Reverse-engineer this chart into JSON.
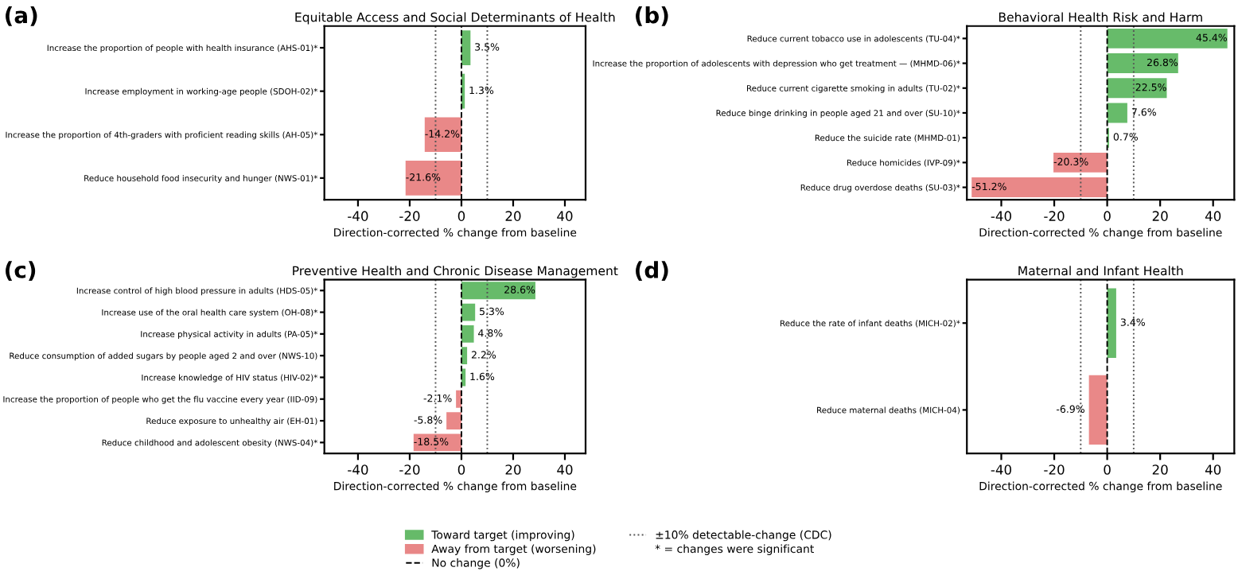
{
  "chart_data": [
    {
      "type": "bar",
      "orientation": "horizontal",
      "title": "Equitable Access and Social Determinants of Health",
      "xlabel": "Direction-corrected % change from baseline",
      "annotations": [
        "(a)",
        "* = changes were significant"
      ],
      "legend": "bottom",
      "categories": [
        "Increase the proportion of people with health insurance (AHS-01)*",
        "Increase employment in working-age people (SDOH-02)*",
        "Increase the proportion of 4th-graders with proficient reading skills (AH-05)*",
        "Reduce household food insecurity and hunger (NWS-01)*"
      ],
      "series": [
        {
          "name": "Toward target (improving)",
          "color": "#4caf50",
          "values": [
            3.5,
            1.3,
            null,
            null
          ],
          "value_labels": [
            "3.5%",
            "1.3%",
            null,
            null
          ]
        },
        {
          "name": "Away from target (worsening)",
          "color": "#e57373",
          "values": [
            null,
            null,
            -14.2,
            -21.6
          ],
          "value_labels": [
            null,
            null,
            "-14.2%",
            "-21.6%"
          ]
        }
      ],
      "ref_lines": [
        {
          "axis": "x",
          "value": 0,
          "label": "No change (0%)",
          "line_style": "dashed",
          "color": "#000000"
        },
        {
          "axis": "x",
          "value": -10,
          "label": "±10% detectable-change (CDC)",
          "line_style": "dotted",
          "color": "#555555"
        },
        {
          "axis": "x",
          "value": 10,
          "line_style": "dotted",
          "color": "#555555"
        }
      ],
      "xlim": [
        -53,
        48
      ],
      "xticks": [
        -40,
        -20,
        0,
        20,
        40
      ]
    },
    {
      "type": "bar",
      "orientation": "horizontal",
      "title": "Behavioral Health Risk and Harm",
      "xlabel": "Direction-corrected % change from baseline",
      "annotations": [
        "(b)"
      ],
      "categories": [
        "Reduce current tobacco use in adolescents (TU-04)*",
        "Increase the proportion of adolescents with depression who get treatment — (MHMD-06)*",
        "Reduce current cigarette smoking in adults (TU-02)*",
        "Reduce binge drinking in people aged 21 and over (SU-10)*",
        "Reduce the suicide rate (MHMD-01)",
        "Reduce homicides (IVP-09)*",
        "Reduce drug overdose deaths (SU-03)*"
      ],
      "series": [
        {
          "color": "#4caf50",
          "values": [
            45.4,
            26.8,
            22.5,
            7.6,
            0.7,
            null,
            null
          ],
          "value_labels": [
            "45.4%",
            "26.8%",
            "22.5%",
            "7.6%",
            "0.7%",
            null,
            null
          ]
        },
        {
          "color": "#e57373",
          "values": [
            null,
            null,
            null,
            null,
            null,
            -20.3,
            -51.2
          ],
          "value_labels": [
            null,
            null,
            null,
            null,
            null,
            "-20.3%",
            "-51.2%"
          ]
        }
      ],
      "ref_lines": [
        {
          "axis": "x",
          "value": 0,
          "line_style": "dashed",
          "color": "#000000"
        },
        {
          "axis": "x",
          "value": -10,
          "line_style": "dotted",
          "color": "#555555"
        },
        {
          "axis": "x",
          "value": 10,
          "line_style": "dotted",
          "color": "#555555"
        }
      ],
      "xlim": [
        -53,
        48
      ],
      "xticks": [
        -40,
        -20,
        0,
        20,
        40
      ]
    },
    {
      "type": "bar",
      "orientation": "horizontal",
      "title": "Preventive Health and Chronic Disease Management",
      "xlabel": "Direction-corrected % change from baseline",
      "annotations": [
        "(c)"
      ],
      "categories": [
        "Increase control of high blood pressure in adults (HDS-05)*",
        "Increase use of the oral health care system (OH-08)*",
        "Increase physical activity in adults (PA-05)*",
        "Reduce consumption of added sugars by people aged 2 and over (NWS-10)",
        "Increase knowledge of HIV status (HIV-02)*",
        "Increase the proportion of people who get the flu vaccine every year (IID-09)",
        "Reduce exposure to unhealthy air (EH-01)",
        "Reduce childhood and adolescent obesity (NWS-04)*"
      ],
      "series": [
        {
          "color": "#4caf50",
          "values": [
            28.6,
            5.3,
            4.8,
            2.2,
            1.6,
            null,
            null,
            null
          ],
          "value_labels": [
            "28.6%",
            "5.3%",
            "4.8%",
            "2.2%",
            "1.6%",
            null,
            null,
            null
          ]
        },
        {
          "color": "#e57373",
          "values": [
            null,
            null,
            null,
            null,
            null,
            -2.1,
            -5.8,
            -18.5
          ],
          "value_labels": [
            null,
            null,
            null,
            null,
            null,
            "-2.1%",
            "-5.8%",
            "-18.5%"
          ]
        }
      ],
      "ref_lines": [
        {
          "axis": "x",
          "value": 0,
          "line_style": "dashed",
          "color": "#000000"
        },
        {
          "axis": "x",
          "value": -10,
          "line_style": "dotted",
          "color": "#555555"
        },
        {
          "axis": "x",
          "value": 10,
          "line_style": "dotted",
          "color": "#555555"
        }
      ],
      "xlim": [
        -53,
        48
      ],
      "xticks": [
        -40,
        -20,
        0,
        20,
        40
      ]
    },
    {
      "type": "bar",
      "orientation": "horizontal",
      "title": "Maternal and Infant Health",
      "xlabel": "Direction-corrected % change from baseline",
      "annotations": [
        "(d)"
      ],
      "categories": [
        "Reduce the rate of infant deaths (MICH-02)*",
        "Reduce maternal deaths (MICH-04)"
      ],
      "series": [
        {
          "color": "#4caf50",
          "values": [
            3.4,
            null
          ],
          "value_labels": [
            "3.4%",
            null
          ]
        },
        {
          "color": "#e57373",
          "values": [
            null,
            -6.9
          ],
          "value_labels": [
            null,
            "-6.9%"
          ]
        }
      ],
      "ref_lines": [
        {
          "axis": "x",
          "value": 0,
          "line_style": "dashed",
          "color": "#000000"
        },
        {
          "axis": "x",
          "value": -10,
          "line_style": "dotted",
          "color": "#555555"
        },
        {
          "axis": "x",
          "value": 10,
          "line_style": "dotted",
          "color": "#555555"
        }
      ],
      "xlim": [
        -53,
        48
      ],
      "xticks": [
        -40,
        -20,
        0,
        20,
        40
      ]
    }
  ]
}
